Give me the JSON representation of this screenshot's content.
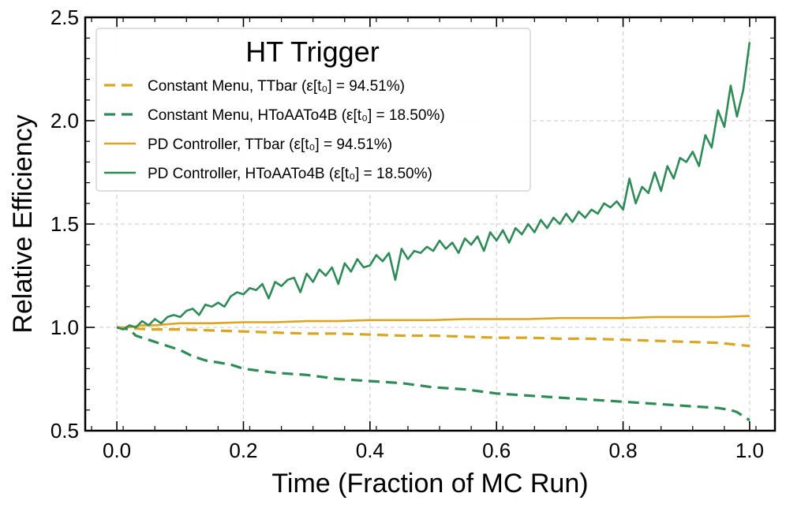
{
  "chart_data": {
    "type": "line",
    "title": "",
    "xlabel": "Time (Fraction of MC Run)",
    "ylabel": "Relative Efficiency",
    "xlim": [
      -0.05,
      1.04
    ],
    "ylim": [
      0.5,
      2.5
    ],
    "xticks": [
      0.0,
      0.2,
      0.4,
      0.6,
      0.8,
      1.0
    ],
    "xtick_labels": [
      "0.0",
      "0.2",
      "0.4",
      "0.6",
      "0.8",
      "1.0"
    ],
    "yticks": [
      0.5,
      1.0,
      1.5,
      2.0,
      2.5
    ],
    "ytick_labels": [
      "0.5",
      "1.0",
      "1.5",
      "2.0",
      "2.5"
    ],
    "grid": true,
    "legend": {
      "title": "HT Trigger",
      "location": "top-left"
    },
    "series": [
      {
        "name": "Constant Menu, TTbar",
        "eps_text": "(ε[t₀] = 94.51%)",
        "color": "#DAA520",
        "style": "dashed",
        "x": [
          0.0,
          0.05,
          0.1,
          0.15,
          0.2,
          0.25,
          0.3,
          0.35,
          0.4,
          0.45,
          0.5,
          0.55,
          0.6,
          0.65,
          0.7,
          0.75,
          0.8,
          0.85,
          0.9,
          0.95,
          1.0
        ],
        "y": [
          1.0,
          0.99,
          0.99,
          0.985,
          0.98,
          0.975,
          0.97,
          0.97,
          0.965,
          0.96,
          0.96,
          0.955,
          0.95,
          0.95,
          0.945,
          0.945,
          0.94,
          0.935,
          0.93,
          0.925,
          0.91
        ]
      },
      {
        "name": "Constant Menu, HToAATo4B",
        "eps_text": "(ε[t₀] = 18.50%)",
        "color": "#2E8B57",
        "style": "dashed",
        "x": [
          0.0,
          0.02,
          0.03,
          0.05,
          0.07,
          0.1,
          0.12,
          0.14,
          0.16,
          0.18,
          0.2,
          0.25,
          0.3,
          0.35,
          0.4,
          0.45,
          0.5,
          0.55,
          0.6,
          0.65,
          0.7,
          0.75,
          0.8,
          0.85,
          0.9,
          0.95,
          0.97,
          0.98,
          0.99,
          1.0
        ],
        "y": [
          1.0,
          0.99,
          0.96,
          0.94,
          0.92,
          0.89,
          0.86,
          0.84,
          0.83,
          0.82,
          0.8,
          0.78,
          0.77,
          0.75,
          0.74,
          0.73,
          0.71,
          0.7,
          0.68,
          0.67,
          0.66,
          0.65,
          0.64,
          0.63,
          0.62,
          0.61,
          0.6,
          0.59,
          0.57,
          0.55
        ]
      },
      {
        "name": "PD Controller, TTbar",
        "eps_text": "(ε[t₀] = 94.51%)",
        "color": "#DAA520",
        "style": "solid",
        "x": [
          0.0,
          0.02,
          0.04,
          0.06,
          0.08,
          0.1,
          0.15,
          0.2,
          0.25,
          0.3,
          0.35,
          0.4,
          0.45,
          0.5,
          0.55,
          0.6,
          0.65,
          0.7,
          0.75,
          0.8,
          0.85,
          0.9,
          0.95,
          1.0
        ],
        "y": [
          1.0,
          1.0,
          1.01,
          1.01,
          1.015,
          1.02,
          1.02,
          1.025,
          1.025,
          1.03,
          1.03,
          1.035,
          1.035,
          1.035,
          1.04,
          1.04,
          1.04,
          1.045,
          1.045,
          1.045,
          1.05,
          1.05,
          1.05,
          1.055
        ]
      },
      {
        "name": "PD Controller, HToAATo4B",
        "eps_text": "(ε[t₀] = 18.50%)",
        "color": "#2E8B57",
        "style": "solid",
        "x": [
          0.0,
          0.01,
          0.02,
          0.03,
          0.04,
          0.05,
          0.06,
          0.07,
          0.08,
          0.09,
          0.1,
          0.11,
          0.12,
          0.13,
          0.14,
          0.15,
          0.16,
          0.17,
          0.18,
          0.19,
          0.2,
          0.21,
          0.22,
          0.23,
          0.24,
          0.25,
          0.26,
          0.27,
          0.28,
          0.29,
          0.3,
          0.31,
          0.32,
          0.33,
          0.34,
          0.35,
          0.36,
          0.37,
          0.38,
          0.39,
          0.4,
          0.41,
          0.42,
          0.43,
          0.44,
          0.45,
          0.46,
          0.47,
          0.48,
          0.49,
          0.5,
          0.51,
          0.52,
          0.53,
          0.54,
          0.55,
          0.56,
          0.57,
          0.58,
          0.59,
          0.6,
          0.61,
          0.62,
          0.63,
          0.64,
          0.65,
          0.66,
          0.67,
          0.68,
          0.69,
          0.7,
          0.71,
          0.72,
          0.73,
          0.74,
          0.75,
          0.76,
          0.77,
          0.78,
          0.79,
          0.8,
          0.81,
          0.82,
          0.83,
          0.84,
          0.85,
          0.86,
          0.87,
          0.88,
          0.89,
          0.9,
          0.91,
          0.92,
          0.93,
          0.94,
          0.95,
          0.96,
          0.97,
          0.98,
          0.99,
          1.0
        ],
        "y": [
          1.0,
          0.99,
          1.01,
          1.0,
          1.03,
          1.01,
          1.04,
          1.02,
          1.05,
          1.06,
          1.05,
          1.08,
          1.09,
          1.06,
          1.11,
          1.1,
          1.12,
          1.1,
          1.15,
          1.17,
          1.16,
          1.19,
          1.18,
          1.21,
          1.14,
          1.22,
          1.2,
          1.23,
          1.24,
          1.17,
          1.26,
          1.22,
          1.28,
          1.25,
          1.29,
          1.21,
          1.31,
          1.27,
          1.33,
          1.29,
          1.3,
          1.35,
          1.32,
          1.36,
          1.23,
          1.38,
          1.33,
          1.37,
          1.36,
          1.39,
          1.37,
          1.42,
          1.38,
          1.41,
          1.36,
          1.43,
          1.4,
          1.44,
          1.37,
          1.46,
          1.42,
          1.47,
          1.41,
          1.48,
          1.45,
          1.5,
          1.46,
          1.52,
          1.48,
          1.53,
          1.5,
          1.55,
          1.51,
          1.56,
          1.53,
          1.57,
          1.55,
          1.6,
          1.58,
          1.61,
          1.57,
          1.72,
          1.6,
          1.68,
          1.65,
          1.75,
          1.66,
          1.78,
          1.72,
          1.82,
          1.8,
          1.85,
          1.78,
          1.93,
          1.87,
          2.05,
          1.97,
          2.17,
          2.02,
          2.15,
          2.38
        ]
      }
    ]
  }
}
